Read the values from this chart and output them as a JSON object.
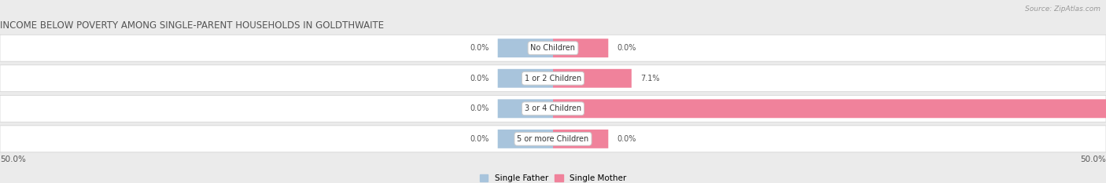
{
  "title": "INCOME BELOW POVERTY AMONG SINGLE-PARENT HOUSEHOLDS IN GOLDTHWAITE",
  "source": "Source: ZipAtlas.com",
  "categories": [
    "No Children",
    "1 or 2 Children",
    "3 or 4 Children",
    "5 or more Children"
  ],
  "single_father": [
    0.0,
    0.0,
    0.0,
    0.0
  ],
  "single_mother": [
    0.0,
    7.1,
    50.0,
    0.0
  ],
  "father_color": "#a8c4dc",
  "mother_color": "#f0829b",
  "bg_color": "#ebebeb",
  "row_bg_color": "#f7f7f7",
  "row_alt_color": "#e8e8e8",
  "axis_limit": 50.0,
  "min_bar_width": 5.0,
  "legend_father": "Single Father",
  "legend_mother": "Single Mother",
  "title_fontsize": 8.5,
  "label_fontsize": 7.0,
  "tick_fontsize": 7.5,
  "source_fontsize": 6.5,
  "value_fontsize": 7.0
}
